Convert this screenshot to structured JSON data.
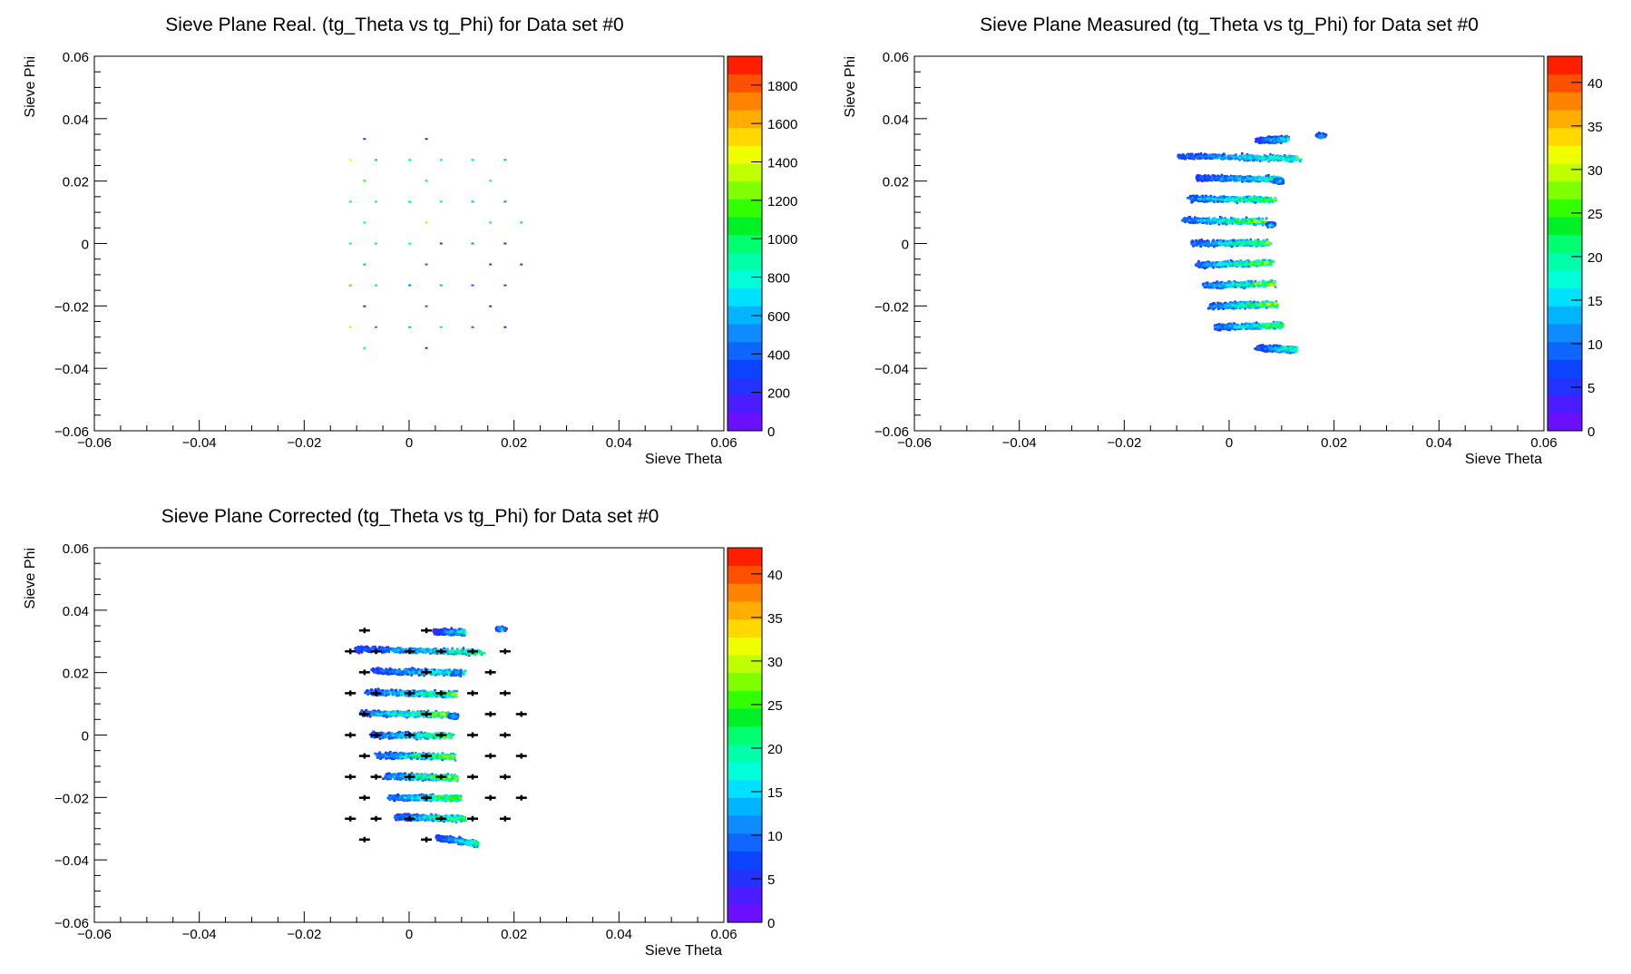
{
  "palette": [
    "#6a10ff",
    "#4a1cff",
    "#2432ff",
    "#0a44ff",
    "#0f66ff",
    "#0e8cff",
    "#00b4ff",
    "#00e0ff",
    "#00ffd8",
    "#00ffa8",
    "#00ff70",
    "#00f028",
    "#33ff00",
    "#80ff00",
    "#bfff00",
    "#f0ff00",
    "#ffd800",
    "#ffae00",
    "#ff8200",
    "#ff5000",
    "#ff1f00"
  ],
  "marker_color": "#000000",
  "chart_data": [
    {
      "type": "heatmap",
      "title": "Sieve Plane Real. (tg_Theta vs tg_Phi) for Data set #0",
      "xlabel": "Sieve Theta",
      "ylabel": "Sieve Phi",
      "xlim": [
        -0.06,
        0.06
      ],
      "ylim": [
        -0.06,
        0.06
      ],
      "x_ticks": [
        -0.06,
        -0.04,
        -0.02,
        0,
        0.02,
        0.04,
        0.06
      ],
      "x_tick_labels": [
        "−0.06",
        "−0.04",
        "−0.02",
        "0",
        "0.02",
        "0.04",
        "0.06"
      ],
      "y_ticks": [
        -0.06,
        -0.04,
        -0.02,
        0,
        0.02,
        0.04,
        0.06
      ],
      "y_tick_labels": [
        "−0.06",
        "−0.04",
        "−0.02",
        "0",
        "0.02",
        "0.04",
        "0.06"
      ],
      "zlim": [
        0,
        1950
      ],
      "z_ticks": [
        0,
        200,
        400,
        600,
        800,
        1000,
        1200,
        1400,
        1600,
        1800
      ],
      "z_tick_labels": [
        "0",
        "200",
        "400",
        "600",
        "800",
        "1000",
        "1200",
        "1400",
        "1600",
        "1800"
      ],
      "points": [
        [
          -0.0085,
          0.0335,
          300
        ],
        [
          0.0033,
          0.0335,
          250
        ],
        [
          -0.0112,
          0.0268,
          1400
        ],
        [
          -0.0063,
          0.0268,
          1100
        ],
        [
          0.0001,
          0.0268,
          800
        ],
        [
          0.0061,
          0.0268,
          900
        ],
        [
          0.0121,
          0.0268,
          700
        ],
        [
          0.0183,
          0.0268,
          600
        ],
        [
          -0.0085,
          0.0201,
          1200
        ],
        [
          0.0033,
          0.0201,
          1000
        ],
        [
          0.0155,
          0.0201,
          900
        ],
        [
          -0.0112,
          0.0134,
          1000
        ],
        [
          -0.0063,
          0.0134,
          800
        ],
        [
          0.0001,
          0.0134,
          900
        ],
        [
          0.0061,
          0.0134,
          700
        ],
        [
          0.0121,
          0.0134,
          600
        ],
        [
          0.0183,
          0.0134,
          500
        ],
        [
          -0.0085,
          0.0067,
          700
        ],
        [
          0.0033,
          0.0067,
          1500
        ],
        [
          0.0155,
          0.0067,
          1000
        ],
        [
          0.0214,
          0.0067,
          1100
        ],
        [
          -0.0112,
          0.0,
          900
        ],
        [
          -0.0063,
          0.0,
          1000
        ],
        [
          0.0001,
          0.0,
          800
        ],
        [
          0.0061,
          0.0,
          300
        ],
        [
          0.0121,
          0.0,
          500
        ],
        [
          0.0183,
          0.0,
          200
        ],
        [
          -0.0085,
          -0.0067,
          600
        ],
        [
          0.0033,
          -0.0067,
          400
        ],
        [
          0.0155,
          -0.0067,
          300
        ],
        [
          0.0214,
          -0.0067,
          200
        ],
        [
          -0.0112,
          -0.0134,
          1200
        ],
        [
          -0.0063,
          -0.0134,
          700
        ],
        [
          0.0001,
          -0.0134,
          500
        ],
        [
          0.0061,
          -0.0134,
          600
        ],
        [
          0.0121,
          -0.0134,
          400
        ],
        [
          0.0183,
          -0.0134,
          300
        ],
        [
          -0.0085,
          -0.0201,
          200
        ],
        [
          0.0033,
          -0.0201,
          400
        ],
        [
          0.0155,
          -0.0201,
          150
        ],
        [
          -0.0112,
          -0.0268,
          1300
        ],
        [
          -0.0063,
          -0.0268,
          500
        ],
        [
          0.0001,
          -0.0268,
          600
        ],
        [
          0.0061,
          -0.0268,
          700
        ],
        [
          0.0121,
          -0.0268,
          400
        ],
        [
          0.0183,
          -0.0268,
          200
        ],
        [
          -0.0085,
          -0.0335,
          900
        ],
        [
          0.0033,
          -0.0335,
          300
        ]
      ]
    },
    {
      "type": "heatmap",
      "title": "Sieve Plane Measured (tg_Theta vs tg_Phi) for Data set #0",
      "xlabel": "Sieve Theta",
      "ylabel": "Sieve Phi",
      "xlim": [
        -0.06,
        0.06
      ],
      "ylim": [
        -0.06,
        0.06
      ],
      "x_ticks": [
        -0.06,
        -0.04,
        -0.02,
        0,
        0.02,
        0.04,
        0.06
      ],
      "x_tick_labels": [
        "−0.06",
        "−0.04",
        "−0.02",
        "0",
        "0.02",
        "0.04",
        "0.06"
      ],
      "y_ticks": [
        -0.06,
        -0.04,
        -0.02,
        0,
        0.02,
        0.04,
        0.06
      ],
      "y_tick_labels": [
        "−0.06",
        "−0.04",
        "−0.02",
        "0",
        "0.02",
        "0.04",
        "0.06"
      ],
      "zlim": [
        0,
        43
      ],
      "z_ticks": [
        0,
        5,
        10,
        15,
        20,
        25,
        30,
        35,
        40
      ],
      "z_tick_labels": [
        "0",
        "5",
        "10",
        "15",
        "20",
        "25",
        "30",
        "35",
        "40"
      ],
      "bands": [
        [
          0.0055,
          0.011,
          0.033,
          0.0334,
          25
        ],
        [
          -0.0095,
          0.0135,
          0.028,
          0.0272,
          30
        ],
        [
          -0.006,
          0.01,
          0.021,
          0.0206,
          28
        ],
        [
          -0.0075,
          0.0085,
          0.0144,
          0.014,
          35
        ],
        [
          -0.0085,
          0.007,
          0.0075,
          0.007,
          38
        ],
        [
          -0.007,
          0.0075,
          0.0,
          0.0002,
          36
        ],
        [
          -0.006,
          0.008,
          -0.0068,
          -0.0062,
          38
        ],
        [
          -0.0045,
          0.0085,
          -0.0135,
          -0.0128,
          40
        ],
        [
          -0.0035,
          0.009,
          -0.02,
          -0.0195,
          38
        ],
        [
          -0.0025,
          0.01,
          -0.0268,
          -0.0262,
          36
        ],
        [
          0.0055,
          0.0125,
          -0.0335,
          -0.034,
          30
        ]
      ],
      "blobs": [
        [
          0.0175,
          0.0345,
          22
        ],
        [
          0.0095,
          0.02,
          20
        ],
        [
          0.008,
          0.006,
          22
        ]
      ]
    },
    {
      "type": "heatmap",
      "title": "Sieve Plane Corrected (tg_Theta vs tg_Phi) for Data set #0",
      "xlabel": "Sieve Theta",
      "ylabel": "Sieve Phi",
      "xlim": [
        -0.06,
        0.06
      ],
      "ylim": [
        -0.06,
        0.06
      ],
      "x_ticks": [
        -0.06,
        -0.04,
        -0.02,
        0,
        0.02,
        0.04,
        0.06
      ],
      "x_tick_labels": [
        "−0.06",
        "−0.04",
        "−0.02",
        "0",
        "0.02",
        "0.04",
        "0.06"
      ],
      "y_ticks": [
        -0.06,
        -0.04,
        -0.02,
        0,
        0.02,
        0.04,
        0.06
      ],
      "y_tick_labels": [
        "−0.06",
        "−0.04",
        "−0.02",
        "0",
        "0.02",
        "0.04",
        "0.06"
      ],
      "zlim": [
        0,
        43
      ],
      "z_ticks": [
        0,
        5,
        10,
        15,
        20,
        25,
        30,
        35,
        40
      ],
      "z_tick_labels": [
        "0",
        "5",
        "10",
        "15",
        "20",
        "25",
        "30",
        "35",
        "40"
      ],
      "bands": [
        [
          0.005,
          0.0105,
          0.033,
          0.033,
          25
        ],
        [
          -0.01,
          0.014,
          0.0275,
          0.0265,
          30
        ],
        [
          -0.007,
          0.0105,
          0.0205,
          0.02,
          28
        ],
        [
          -0.008,
          0.009,
          0.0137,
          0.013,
          35
        ],
        [
          -0.009,
          0.0075,
          0.007,
          0.0065,
          38
        ],
        [
          -0.007,
          0.008,
          0.0,
          -0.0003,
          36
        ],
        [
          -0.006,
          0.0085,
          -0.0065,
          -0.007,
          38
        ],
        [
          -0.0045,
          0.009,
          -0.0132,
          -0.0137,
          40
        ],
        [
          -0.0035,
          0.0095,
          -0.02,
          -0.0202,
          38
        ],
        [
          -0.0025,
          0.0105,
          -0.0262,
          -0.0268,
          36
        ],
        [
          0.0055,
          0.013,
          -0.033,
          -0.0348,
          30
        ]
      ],
      "blobs": [
        [
          0.0175,
          0.034,
          22
        ],
        [
          0.009,
          0.02,
          20
        ],
        [
          0.0085,
          0.006,
          22
        ]
      ],
      "markers": [
        [
          -0.0085,
          0.0335
        ],
        [
          0.0033,
          0.0335
        ],
        [
          -0.0112,
          0.0268
        ],
        [
          -0.0063,
          0.0268
        ],
        [
          0.0001,
          0.0268
        ],
        [
          0.0061,
          0.0268
        ],
        [
          0.0121,
          0.0268
        ],
        [
          0.0183,
          0.0268
        ],
        [
          -0.0085,
          0.0201
        ],
        [
          0.0033,
          0.0201
        ],
        [
          0.0155,
          0.0201
        ],
        [
          -0.0112,
          0.0134
        ],
        [
          -0.0063,
          0.0134
        ],
        [
          0.0001,
          0.0134
        ],
        [
          0.0061,
          0.0134
        ],
        [
          0.0121,
          0.0134
        ],
        [
          0.0183,
          0.0134
        ],
        [
          -0.0085,
          0.0067
        ],
        [
          0.0033,
          0.0067
        ],
        [
          0.0155,
          0.0067
        ],
        [
          0.0214,
          0.0067
        ],
        [
          -0.0112,
          0.0
        ],
        [
          -0.0063,
          0.0
        ],
        [
          0.0001,
          0.0
        ],
        [
          0.0061,
          0.0
        ],
        [
          0.0121,
          0.0
        ],
        [
          0.0183,
          0.0
        ],
        [
          -0.0085,
          -0.0067
        ],
        [
          0.0033,
          -0.0067
        ],
        [
          0.0155,
          -0.0067
        ],
        [
          0.0214,
          -0.0067
        ],
        [
          -0.0112,
          -0.0134
        ],
        [
          -0.0063,
          -0.0134
        ],
        [
          0.0001,
          -0.0134
        ],
        [
          0.0061,
          -0.0134
        ],
        [
          0.0121,
          -0.0134
        ],
        [
          0.0183,
          -0.0134
        ],
        [
          -0.0085,
          -0.0201
        ],
        [
          0.0033,
          -0.0201
        ],
        [
          0.0155,
          -0.0201
        ],
        [
          0.0214,
          -0.0201
        ],
        [
          -0.0112,
          -0.0268
        ],
        [
          -0.0063,
          -0.0268
        ],
        [
          0.0001,
          -0.0268
        ],
        [
          0.0061,
          -0.0268
        ],
        [
          0.0121,
          -0.0268
        ],
        [
          0.0183,
          -0.0268
        ],
        [
          -0.0085,
          -0.0335
        ],
        [
          0.0033,
          -0.0335
        ]
      ]
    }
  ]
}
